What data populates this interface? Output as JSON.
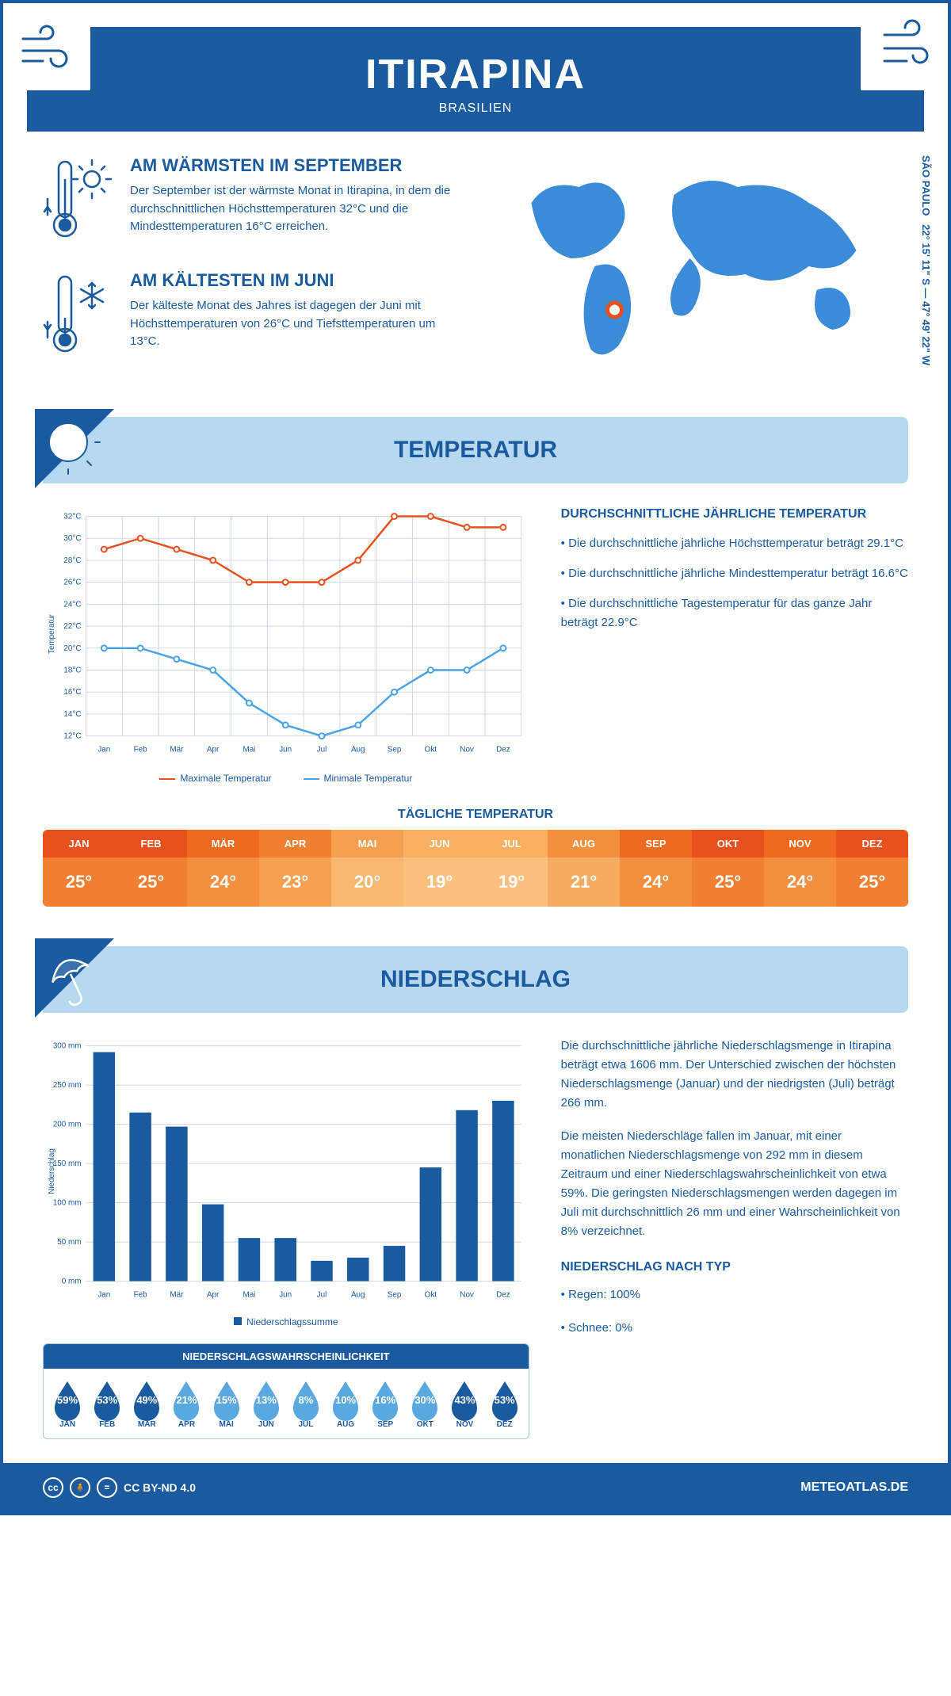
{
  "header": {
    "title": "ITIRAPINA",
    "subtitle": "BRASILIEN"
  },
  "coords": {
    "lat": "22° 15' 11\" S",
    "lon": "47° 49' 22\" W",
    "region": "SÃO PAULO"
  },
  "warmest": {
    "title": "AM WÄRMSTEN IM SEPTEMBER",
    "text": "Der September ist der wärmste Monat in Itirapina, in dem die durchschnittlichen Höchsttemperaturen 32°C und die Mindesttemperaturen 16°C erreichen."
  },
  "coldest": {
    "title": "AM KÄLTESTEN IM JUNI",
    "text": "Der kälteste Monat des Jahres ist dagegen der Juni mit Höchsttemperaturen von 26°C und Tiefsttemperaturen um 13°C."
  },
  "section_temp": "TEMPERATUR",
  "section_precip": "NIEDERSCHLAG",
  "months": [
    "Jan",
    "Feb",
    "Mär",
    "Apr",
    "Mai",
    "Jun",
    "Jul",
    "Aug",
    "Sep",
    "Okt",
    "Nov",
    "Dez"
  ],
  "months_upper": [
    "JAN",
    "FEB",
    "MÄR",
    "APR",
    "MAI",
    "JUN",
    "JUL",
    "AUG",
    "SEP",
    "OKT",
    "NOV",
    "DEZ"
  ],
  "temp_chart": {
    "ylabel": "Temperatur",
    "ylim": [
      12,
      32
    ],
    "ytick_step": 2,
    "max_series": [
      29,
      30,
      29,
      28,
      26,
      26,
      26,
      28,
      32,
      32,
      31,
      31
    ],
    "min_series": [
      20,
      20,
      19,
      18,
      15,
      13,
      12,
      13,
      16,
      18,
      18,
      20
    ],
    "max_color": "#e8501e",
    "min_color": "#4aa3e8",
    "grid_color": "#d0d8e0",
    "max_label": "Maximale Temperatur",
    "min_label": "Minimale Temperatur"
  },
  "temp_text": {
    "heading": "DURCHSCHNITTLICHE JÄHRLICHE TEMPERATUR",
    "bullets": [
      "• Die durchschnittliche jährliche Höchsttemperatur beträgt 29.1°C",
      "• Die durchschnittliche jährliche Mindesttemperatur beträgt 16.6°C",
      "• Die durchschnittliche Tagestemperatur für das ganze Jahr beträgt 22.9°C"
    ]
  },
  "daily": {
    "title": "TÄGLICHE TEMPERATUR",
    "values": [
      "25°",
      "25°",
      "24°",
      "23°",
      "20°",
      "19°",
      "19°",
      "21°",
      "24°",
      "25°",
      "24°",
      "25°"
    ],
    "header_colors": [
      "#e8501e",
      "#e8501e",
      "#ed6a1e",
      "#f08030",
      "#f4a050",
      "#f8b060",
      "#f8b060",
      "#f29040",
      "#ed6a1e",
      "#e8501e",
      "#ed6a1e",
      "#e8501e"
    ],
    "value_colors": [
      "#f08030",
      "#f08030",
      "#f29040",
      "#f4a050",
      "#f8b870",
      "#fac080",
      "#fac080",
      "#f6ac60",
      "#f29040",
      "#f08030",
      "#f29040",
      "#f08030"
    ]
  },
  "precip_chart": {
    "ylabel": "Niederschlag",
    "ylim": [
      0,
      300
    ],
    "ytick_step": 50,
    "values": [
      292,
      215,
      197,
      98,
      55,
      55,
      26,
      30,
      45,
      145,
      218,
      230
    ],
    "bar_color": "#1a5a9e",
    "grid_color": "#d0d8e0",
    "legend": "Niederschlagssumme"
  },
  "precip_text": {
    "p1": "Die durchschnittliche jährliche Niederschlagsmenge in Itirapina beträgt etwa 1606 mm. Der Unterschied zwischen der höchsten Niederschlagsmenge (Januar) und der niedrigsten (Juli) beträgt 266 mm.",
    "p2": "Die meisten Niederschläge fallen im Januar, mit einer monatlichen Niederschlagsmenge von 292 mm in diesem Zeitraum und einer Niederschlagswahrscheinlichkeit von etwa 59%. Die geringsten Niederschlagsmengen werden dagegen im Juli mit durchschnittlich 26 mm und einer Wahrscheinlichkeit von 8% verzeichnet.",
    "type_heading": "NIEDERSCHLAG NACH TYP",
    "type_bullets": [
      "• Regen: 100%",
      "• Schnee: 0%"
    ]
  },
  "prob": {
    "title": "NIEDERSCHLAGSWAHRSCHEINLICHKEIT",
    "values": [
      59,
      53,
      49,
      21,
      15,
      13,
      8,
      10,
      16,
      30,
      43,
      53
    ],
    "dark": "#1a5a9e",
    "light": "#5aa8e0"
  },
  "footer": {
    "license": "CC BY-ND 4.0",
    "site": "METEOATLAS.DE"
  }
}
